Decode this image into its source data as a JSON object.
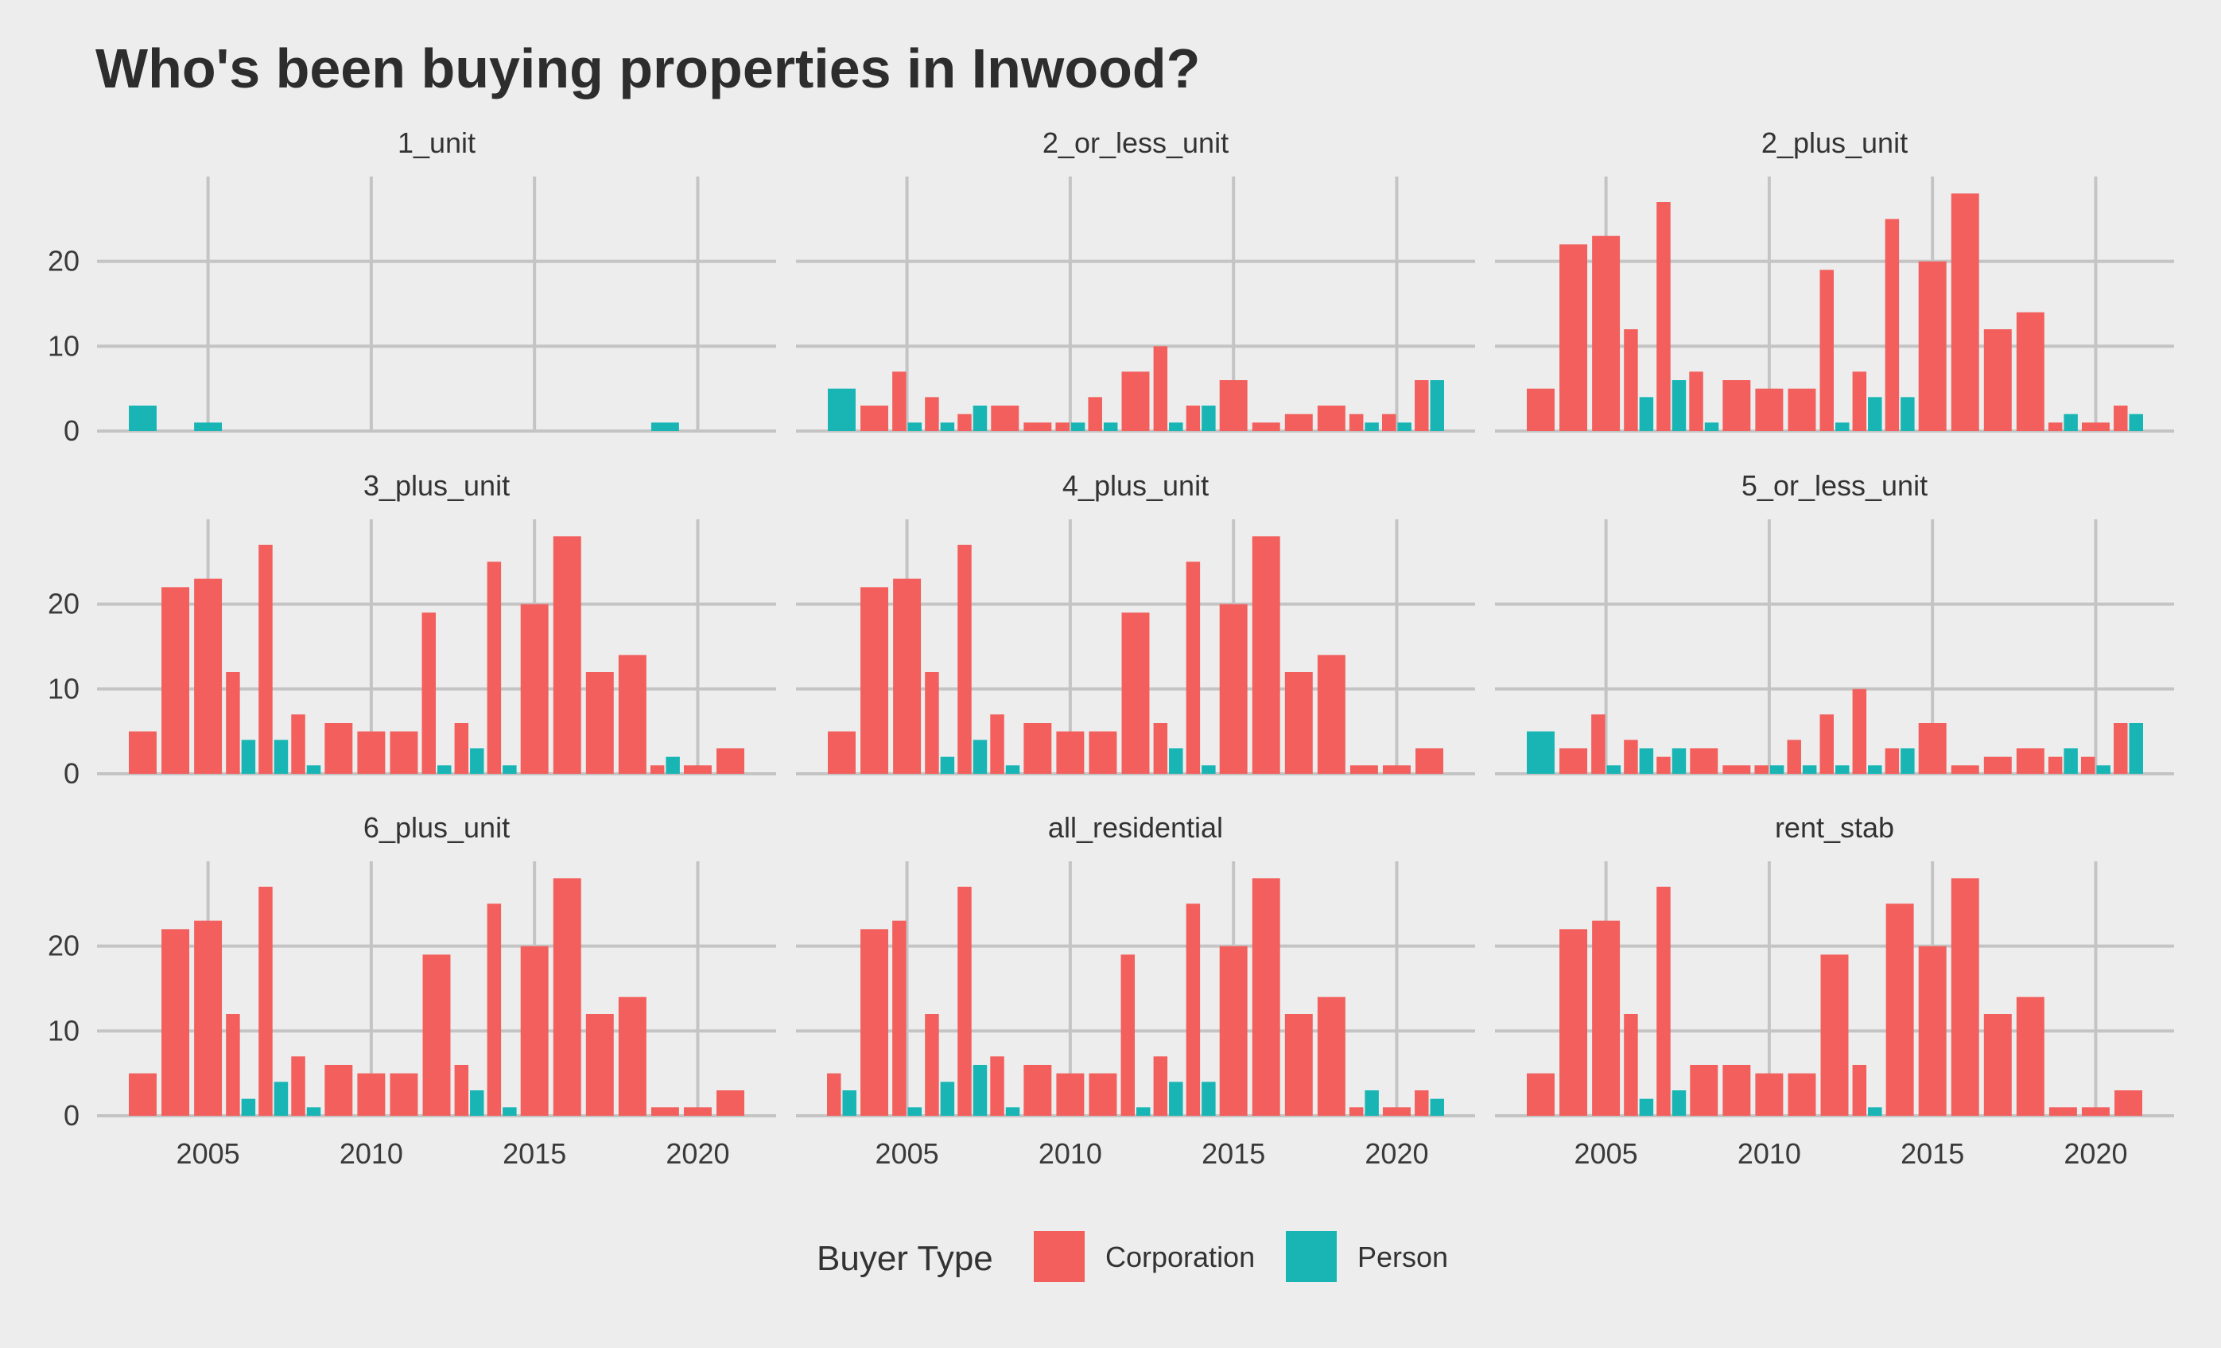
{
  "chart_data": {
    "type": "bar",
    "title": "Who's been buying properties in Inwood?",
    "layout": "facet-grid-3x3",
    "x_ticks": [
      2005,
      2010,
      2015,
      2020
    ],
    "xlim": [
      2001.6,
      2022.4
    ],
    "y_ticks": [
      0,
      10,
      20
    ],
    "ylim": [
      0,
      30
    ],
    "grid": true,
    "legend": {
      "title": "Buyer Type",
      "placement": "bottom",
      "entries": [
        {
          "label": "Corporation",
          "color": "#f25f5c"
        },
        {
          "label": "Person",
          "color": "#19b5b5"
        }
      ]
    },
    "series_colors": {
      "Corporation": "#f25f5c",
      "Person": "#19b5b5"
    },
    "facets": [
      {
        "name": "1_unit",
        "corporation": [],
        "person": [
          [
            2003,
            3
          ],
          [
            2005,
            1
          ],
          [
            2019,
            1
          ]
        ]
      },
      {
        "name": "2_or_less_unit",
        "corporation": [
          [
            2004,
            3
          ],
          [
            2005,
            7
          ],
          [
            2006,
            4
          ],
          [
            2007,
            2
          ],
          [
            2008,
            3
          ],
          [
            2009,
            1
          ],
          [
            2010,
            1
          ],
          [
            2011,
            4
          ],
          [
            2012,
            7
          ],
          [
            2013,
            10
          ],
          [
            2014,
            3
          ],
          [
            2015,
            6
          ],
          [
            2016,
            1
          ],
          [
            2017,
            2
          ],
          [
            2018,
            3
          ],
          [
            2019,
            2
          ],
          [
            2020,
            2
          ],
          [
            2021,
            6
          ]
        ],
        "person": [
          [
            2003,
            5
          ],
          [
            2005,
            1
          ],
          [
            2006,
            1
          ],
          [
            2007,
            3
          ],
          [
            2010,
            1
          ],
          [
            2011,
            1
          ],
          [
            2013,
            1
          ],
          [
            2014,
            3
          ],
          [
            2019,
            1
          ],
          [
            2020,
            1
          ],
          [
            2021,
            6
          ]
        ]
      },
      {
        "name": "2_plus_unit",
        "corporation": [
          [
            2003,
            5
          ],
          [
            2004,
            22
          ],
          [
            2005,
            23
          ],
          [
            2006,
            12
          ],
          [
            2007,
            27
          ],
          [
            2008,
            7
          ],
          [
            2009,
            6
          ],
          [
            2010,
            5
          ],
          [
            2011,
            5
          ],
          [
            2012,
            19
          ],
          [
            2013,
            7
          ],
          [
            2014,
            25
          ],
          [
            2015,
            20
          ],
          [
            2016,
            28
          ],
          [
            2017,
            12
          ],
          [
            2018,
            14
          ],
          [
            2019,
            1
          ],
          [
            2020,
            1
          ],
          [
            2021,
            3
          ]
        ],
        "person": [
          [
            2006,
            4
          ],
          [
            2007,
            6
          ],
          [
            2008,
            1
          ],
          [
            2012,
            1
          ],
          [
            2013,
            4
          ],
          [
            2014,
            4
          ],
          [
            2019,
            2
          ],
          [
            2021,
            2
          ]
        ]
      },
      {
        "name": "3_plus_unit",
        "corporation": [
          [
            2003,
            5
          ],
          [
            2004,
            22
          ],
          [
            2005,
            23
          ],
          [
            2006,
            12
          ],
          [
            2007,
            27
          ],
          [
            2008,
            7
          ],
          [
            2009,
            6
          ],
          [
            2010,
            5
          ],
          [
            2011,
            5
          ],
          [
            2012,
            19
          ],
          [
            2013,
            6
          ],
          [
            2014,
            25
          ],
          [
            2015,
            20
          ],
          [
            2016,
            28
          ],
          [
            2017,
            12
          ],
          [
            2018,
            14
          ],
          [
            2019,
            1
          ],
          [
            2020,
            1
          ],
          [
            2021,
            3
          ]
        ],
        "person": [
          [
            2006,
            4
          ],
          [
            2007,
            4
          ],
          [
            2008,
            1
          ],
          [
            2012,
            1
          ],
          [
            2013,
            3
          ],
          [
            2014,
            1
          ],
          [
            2019,
            2
          ]
        ]
      },
      {
        "name": "4_plus_unit",
        "corporation": [
          [
            2003,
            5
          ],
          [
            2004,
            22
          ],
          [
            2005,
            23
          ],
          [
            2006,
            12
          ],
          [
            2007,
            27
          ],
          [
            2008,
            7
          ],
          [
            2009,
            6
          ],
          [
            2010,
            5
          ],
          [
            2011,
            5
          ],
          [
            2012,
            19
          ],
          [
            2013,
            6
          ],
          [
            2014,
            25
          ],
          [
            2015,
            20
          ],
          [
            2016,
            28
          ],
          [
            2017,
            12
          ],
          [
            2018,
            14
          ],
          [
            2019,
            1
          ],
          [
            2020,
            1
          ],
          [
            2021,
            3
          ]
        ],
        "person": [
          [
            2006,
            2
          ],
          [
            2007,
            4
          ],
          [
            2008,
            1
          ],
          [
            2013,
            3
          ],
          [
            2014,
            1
          ]
        ]
      },
      {
        "name": "5_or_less_unit",
        "corporation": [
          [
            2004,
            3
          ],
          [
            2005,
            7
          ],
          [
            2006,
            4
          ],
          [
            2007,
            2
          ],
          [
            2008,
            3
          ],
          [
            2009,
            1
          ],
          [
            2010,
            1
          ],
          [
            2011,
            4
          ],
          [
            2012,
            7
          ],
          [
            2013,
            10
          ],
          [
            2014,
            3
          ],
          [
            2015,
            6
          ],
          [
            2016,
            1
          ],
          [
            2017,
            2
          ],
          [
            2018,
            3
          ],
          [
            2019,
            2
          ],
          [
            2020,
            2
          ],
          [
            2021,
            6
          ]
        ],
        "person": [
          [
            2003,
            5
          ],
          [
            2005,
            1
          ],
          [
            2006,
            3
          ],
          [
            2007,
            3
          ],
          [
            2010,
            1
          ],
          [
            2011,
            1
          ],
          [
            2012,
            1
          ],
          [
            2013,
            1
          ],
          [
            2014,
            3
          ],
          [
            2019,
            3
          ],
          [
            2020,
            1
          ],
          [
            2021,
            6
          ]
        ]
      },
      {
        "name": "6_plus_unit",
        "corporation": [
          [
            2003,
            5
          ],
          [
            2004,
            22
          ],
          [
            2005,
            23
          ],
          [
            2006,
            12
          ],
          [
            2007,
            27
          ],
          [
            2008,
            7
          ],
          [
            2009,
            6
          ],
          [
            2010,
            5
          ],
          [
            2011,
            5
          ],
          [
            2012,
            19
          ],
          [
            2013,
            6
          ],
          [
            2014,
            25
          ],
          [
            2015,
            20
          ],
          [
            2016,
            28
          ],
          [
            2017,
            12
          ],
          [
            2018,
            14
          ],
          [
            2019,
            1
          ],
          [
            2020,
            1
          ],
          [
            2021,
            3
          ]
        ],
        "person": [
          [
            2006,
            2
          ],
          [
            2007,
            4
          ],
          [
            2008,
            1
          ],
          [
            2013,
            3
          ],
          [
            2014,
            1
          ]
        ]
      },
      {
        "name": "all_residential",
        "corporation": [
          [
            2003,
            5
          ],
          [
            2004,
            22
          ],
          [
            2005,
            23
          ],
          [
            2006,
            12
          ],
          [
            2007,
            27
          ],
          [
            2008,
            7
          ],
          [
            2009,
            6
          ],
          [
            2010,
            5
          ],
          [
            2011,
            5
          ],
          [
            2012,
            19
          ],
          [
            2013,
            7
          ],
          [
            2014,
            25
          ],
          [
            2015,
            20
          ],
          [
            2016,
            28
          ],
          [
            2017,
            12
          ],
          [
            2018,
            14
          ],
          [
            2019,
            1
          ],
          [
            2020,
            1
          ],
          [
            2021,
            3
          ]
        ],
        "person": [
          [
            2003,
            3
          ],
          [
            2005,
            1
          ],
          [
            2006,
            4
          ],
          [
            2007,
            6
          ],
          [
            2008,
            1
          ],
          [
            2012,
            1
          ],
          [
            2013,
            4
          ],
          [
            2014,
            4
          ],
          [
            2019,
            3
          ],
          [
            2021,
            2
          ]
        ]
      },
      {
        "name": "rent_stab",
        "corporation": [
          [
            2003,
            5
          ],
          [
            2004,
            22
          ],
          [
            2005,
            23
          ],
          [
            2006,
            12
          ],
          [
            2007,
            27
          ],
          [
            2008,
            6
          ],
          [
            2009,
            6
          ],
          [
            2010,
            5
          ],
          [
            2011,
            5
          ],
          [
            2012,
            19
          ],
          [
            2013,
            6
          ],
          [
            2014,
            25
          ],
          [
            2015,
            20
          ],
          [
            2016,
            28
          ],
          [
            2017,
            12
          ],
          [
            2018,
            14
          ],
          [
            2019,
            1
          ],
          [
            2020,
            1
          ],
          [
            2021,
            3
          ]
        ],
        "person": [
          [
            2006,
            2
          ],
          [
            2007,
            3
          ],
          [
            2013,
            1
          ]
        ]
      }
    ]
  }
}
